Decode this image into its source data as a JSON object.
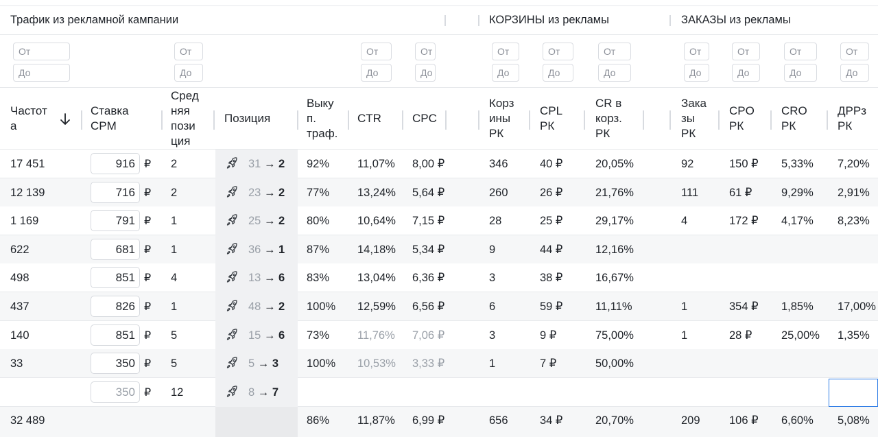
{
  "groups": {
    "traffic": "Трафик из рекламной кампании",
    "carts": "КОРЗИНЫ из рекламы",
    "orders": "ЗАКАЗЫ из рекламы"
  },
  "filter": {
    "from": "От",
    "to": "До"
  },
  "columns": {
    "freq": [
      "Частот",
      "а"
    ],
    "bid": [
      "Ставка",
      "CPM"
    ],
    "avgpos": [
      "Сред",
      "няя",
      "пози",
      "ция"
    ],
    "position": [
      "Позиция"
    ],
    "buyout": [
      "Выку",
      "п.",
      "траф."
    ],
    "ctr": [
      "CTR"
    ],
    "cpc": [
      "CPC"
    ],
    "carts": [
      "Корз",
      "ины",
      "РК"
    ],
    "cpl": [
      "CPL",
      "РК"
    ],
    "cr": [
      "CR в",
      "корз.",
      "РК"
    ],
    "orders": [
      "Зака",
      "зы",
      "РК"
    ],
    "cpo": [
      "CPO",
      "РК"
    ],
    "cro": [
      "CRO",
      "РК"
    ],
    "drr": [
      "ДРРз",
      "РК"
    ]
  },
  "currency": "₽",
  "position_arrow": "→",
  "icons": {
    "sort": "arrow-down-icon",
    "position": "rocket-icon"
  },
  "rows": [
    {
      "freq": "17 451",
      "bid": "916",
      "avgpos": "2",
      "pos_from": "31",
      "pos_to": "2",
      "buyout": "92%",
      "ctr": "11,07%",
      "cpc": "8,00 ₽",
      "carts": "346",
      "cpl": "40 ₽",
      "cr": "20,05%",
      "orders": "92",
      "cpo": "150 ₽",
      "cro": "5,33%",
      "drr": "7,20%"
    },
    {
      "freq": "12 139",
      "bid": "716",
      "avgpos": "2",
      "pos_from": "23",
      "pos_to": "2",
      "buyout": "77%",
      "ctr": "13,24%",
      "cpc": "5,64 ₽",
      "carts": "260",
      "cpl": "26 ₽",
      "cr": "21,76%",
      "orders": "111",
      "cpo": "61 ₽",
      "cro": "9,29%",
      "drr": "2,91%"
    },
    {
      "freq": "1 169",
      "bid": "791",
      "avgpos": "1",
      "pos_from": "25",
      "pos_to": "2",
      "buyout": "80%",
      "ctr": "10,64%",
      "cpc": "7,15 ₽",
      "carts": "28",
      "cpl": "25 ₽",
      "cr": "29,17%",
      "orders": "4",
      "cpo": "172 ₽",
      "cro": "4,17%",
      "drr": "8,23%"
    },
    {
      "freq": "622",
      "bid": "681",
      "avgpos": "1",
      "pos_from": "36",
      "pos_to": "1",
      "buyout": "87%",
      "ctr": "14,18%",
      "cpc": "5,34 ₽",
      "carts": "9",
      "cpl": "44 ₽",
      "cr": "12,16%",
      "orders": "",
      "cpo": "",
      "cro": "",
      "drr": ""
    },
    {
      "freq": "498",
      "bid": "851",
      "avgpos": "4",
      "pos_from": "13",
      "pos_to": "6",
      "buyout": "83%",
      "ctr": "13,04%",
      "cpc": "6,36 ₽",
      "carts": "3",
      "cpl": "38 ₽",
      "cr": "16,67%",
      "orders": "",
      "cpo": "",
      "cro": "",
      "drr": ""
    },
    {
      "freq": "437",
      "bid": "826",
      "avgpos": "1",
      "pos_from": "48",
      "pos_to": "2",
      "buyout": "100%",
      "ctr": "12,59%",
      "cpc": "6,56 ₽",
      "carts": "6",
      "cpl": "59 ₽",
      "cr": "11,11%",
      "orders": "1",
      "cpo": "354 ₽",
      "cro": "1,85%",
      "drr": "17,00%"
    },
    {
      "freq": "140",
      "bid": "851",
      "avgpos": "5",
      "pos_from": "15",
      "pos_to": "6",
      "buyout": "73%",
      "ctr": "11,76%",
      "cpc": "7,06 ₽",
      "carts": "3",
      "cpl": "9 ₽",
      "cr": "75,00%",
      "orders": "1",
      "cpo": "28 ₽",
      "cro": "25,00%",
      "drr": "1,35%"
    },
    {
      "freq": "33",
      "bid": "350",
      "avgpos": "5",
      "pos_from": "5",
      "pos_to": "3",
      "buyout": "100%",
      "ctr": "10,53%",
      "cpc": "3,33 ₽",
      "carts": "1",
      "cpl": "7 ₽",
      "cr": "50,00%",
      "orders": "",
      "cpo": "",
      "cro": "",
      "drr": ""
    },
    {
      "freq": "",
      "bid": "350",
      "avgpos": "12",
      "pos_from": "8",
      "pos_to": "7",
      "buyout": "",
      "ctr": "",
      "cpc": "",
      "carts": "",
      "cpl": "",
      "cr": "",
      "orders": "",
      "cpo": "",
      "cro": "",
      "drr": ""
    }
  ],
  "totals": {
    "freq": "32 489",
    "buyout": "86%",
    "ctr": "11,87%",
    "cpc": "6,99 ₽",
    "carts": "656",
    "cpl": "34 ₽",
    "cr": "20,70%",
    "orders": "209",
    "cpo": "106 ₽",
    "cro": "6,60%",
    "drr": "5,08%"
  }
}
